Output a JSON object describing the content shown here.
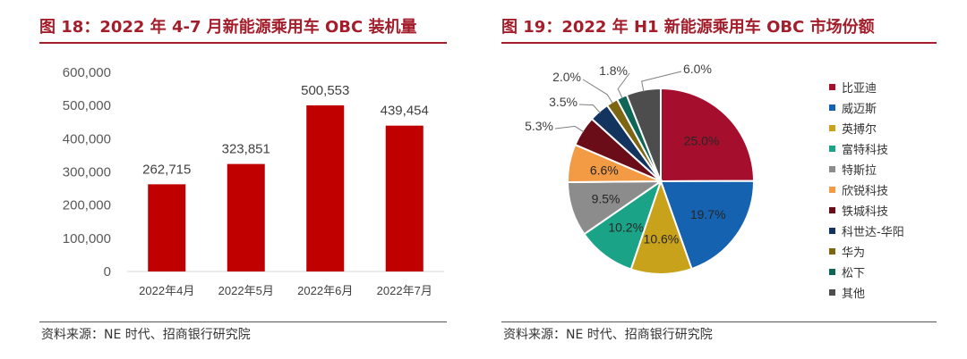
{
  "left": {
    "title": "图 18：2022 年 4-7 月新能源乘用车 OBC 装机量",
    "source": "资料来源：NE 时代、招商银行研究院"
  },
  "right": {
    "title": "图 19：2022 年 H1 新能源乘用车 OBC 市场份额",
    "source": "资料来源：NE 时代、招商银行研究院"
  },
  "chart_data": [
    {
      "type": "bar",
      "title": "图 18：2022 年 4-7 月新能源乘用车 OBC 装机量",
      "categories": [
        "2022年4月",
        "2022年5月",
        "2022年6月",
        "2022年7月"
      ],
      "values": [
        262715,
        323851,
        500553,
        439454
      ],
      "value_labels": [
        "262,715",
        "323,851",
        "500,553",
        "439,454"
      ],
      "ylim": [
        0,
        600000
      ],
      "yticks": [
        "0",
        "100,000",
        "200,000",
        "300,000",
        "400,000",
        "500,000",
        "600,000"
      ],
      "color": "#c00000",
      "grid": false
    },
    {
      "type": "pie",
      "title": "图 19：2022 年 H1 新能源乘用车 OBC 市场份额",
      "legend_position": "right",
      "slices": [
        {
          "name": "比亚迪",
          "value": 25.0,
          "label": "25.0%",
          "color": "#a50f2d"
        },
        {
          "name": "威迈斯",
          "value": 19.7,
          "label": "19.7%",
          "color": "#1562b0"
        },
        {
          "name": "英搏尔",
          "value": 10.6,
          "label": "10.6%",
          "color": "#c9a21b"
        },
        {
          "name": "富特科技",
          "value": 10.2,
          "label": "10.2%",
          "color": "#1aa386"
        },
        {
          "name": "特斯拉",
          "value": 9.5,
          "label": "9.5%",
          "color": "#8c8c8c"
        },
        {
          "name": "欣锐科技",
          "value": 6.6,
          "label": "6.6%",
          "color": "#f39a45"
        },
        {
          "name": "铁城科技",
          "value": 5.3,
          "label": "5.3%",
          "color": "#6b0c19"
        },
        {
          "name": "科世达-华阳",
          "value": 3.5,
          "label": "3.5%",
          "color": "#12345f"
        },
        {
          "name": "华为",
          "value": 2.0,
          "label": "2.0%",
          "color": "#7d6612"
        },
        {
          "name": "松下",
          "value": 1.8,
          "label": "1.8%",
          "color": "#0f6657"
        },
        {
          "name": "其他",
          "value": 6.0,
          "label": "6.0%",
          "color": "#4d4d4d"
        }
      ]
    }
  ]
}
